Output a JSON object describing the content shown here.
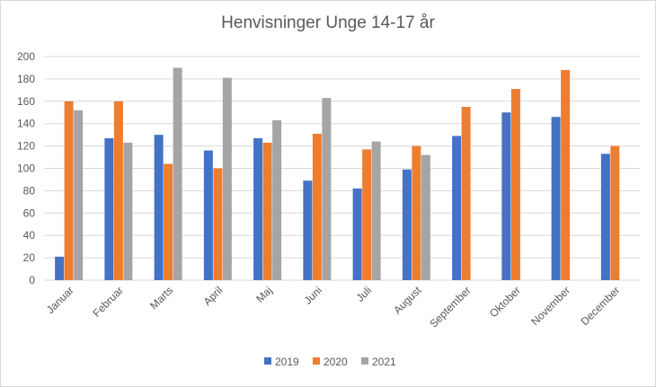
{
  "chart_data": {
    "type": "bar",
    "title": "Henvisninger Unge 14-17 år",
    "xlabel": "",
    "ylabel": "",
    "ylim": [
      0,
      200
    ],
    "yticks": [
      0,
      20,
      40,
      60,
      80,
      100,
      120,
      140,
      160,
      180,
      200
    ],
    "grid": true,
    "legend_position": "bottom",
    "categories": [
      "Januar",
      "Februar",
      "Marts",
      "April",
      "Maj",
      "Juni",
      "Juli",
      "August",
      "September",
      "Oktober",
      "November",
      "December"
    ],
    "series": [
      {
        "name": "2019",
        "color": "#4472c4",
        "values": [
          21,
          127,
          130,
          116,
          127,
          89,
          82,
          99,
          129,
          150,
          146,
          113
        ]
      },
      {
        "name": "2020",
        "color": "#ed7d31",
        "values": [
          160,
          160,
          104,
          100,
          123,
          131,
          117,
          120,
          155,
          171,
          188,
          120
        ]
      },
      {
        "name": "2021",
        "color": "#a5a5a5",
        "values": [
          152,
          123,
          190,
          181,
          143,
          163,
          124,
          112,
          null,
          null,
          null,
          null
        ]
      }
    ]
  }
}
